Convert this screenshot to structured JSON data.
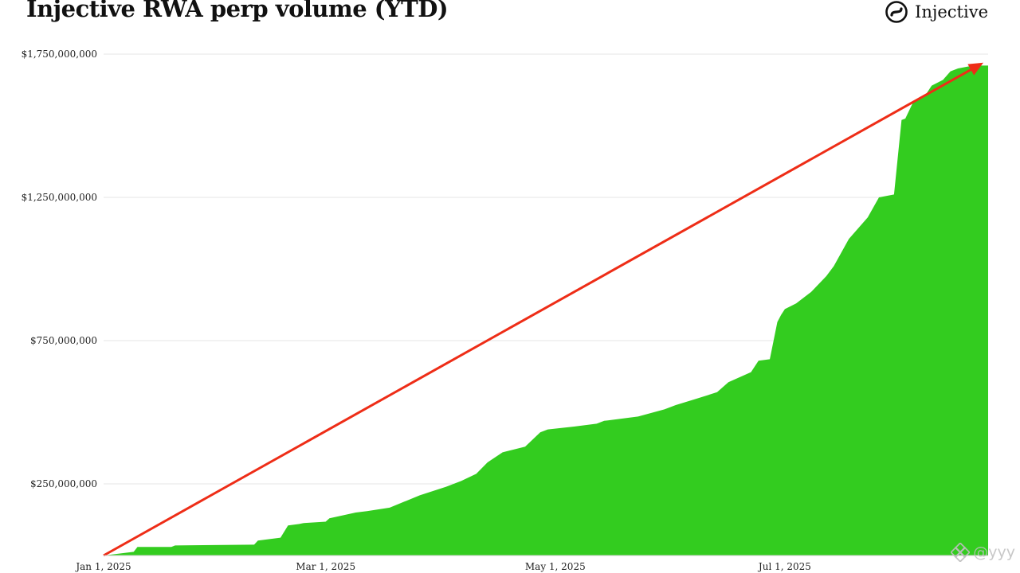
{
  "header": {
    "title": "Injective RWA perp volume (YTD)",
    "brand_name": "Injective",
    "brand_icon": "injective-logo-icon"
  },
  "watermark": {
    "text": "@yyy",
    "icon": "binance-square-icon"
  },
  "colors": {
    "area": "#33cc1f",
    "trend_arrow": "#ee2d17",
    "grid": "#e4e4e4"
  },
  "chart_data": {
    "type": "area",
    "title": "Injective RWA perp volume (YTD)",
    "xlabel": "",
    "ylabel": "",
    "x_type": "date",
    "xlim": [
      "2025-01-01",
      "2025-08-24"
    ],
    "ylim": [
      0,
      1750000000
    ],
    "x_ticks": [
      "2025-01-01",
      "2025-03-01",
      "2025-05-01",
      "2025-07-01"
    ],
    "x_tick_labels": [
      "Jan 1, 2025",
      "Mar 1, 2025",
      "May 1, 2025",
      "Jul 1, 2025"
    ],
    "y_ticks": [
      250000000,
      750000000,
      1250000000,
      1750000000
    ],
    "y_tick_labels": [
      "$250,000,000",
      "$750,000,000",
      "$1,250,000,000",
      "$1,750,000,000"
    ],
    "grid": true,
    "legend": "none",
    "series": [
      {
        "x": [
          "2025-01-01",
          "2025-01-03",
          "2025-01-09",
          "2025-01-10",
          "2025-01-19",
          "2025-01-20",
          "2025-02-10",
          "2025-02-11",
          "2025-02-17",
          "2025-02-19",
          "2025-02-22",
          "2025-02-23",
          "2025-03-01",
          "2025-03-02",
          "2025-03-09",
          "2025-03-12",
          "2025-03-18",
          "2025-03-26",
          "2025-04-02",
          "2025-04-06",
          "2025-04-10",
          "2025-04-13",
          "2025-04-17",
          "2025-04-23",
          "2025-04-27",
          "2025-04-29",
          "2025-05-06",
          "2025-05-12",
          "2025-05-14",
          "2025-05-23",
          "2025-05-30",
          "2025-06-02",
          "2025-06-07",
          "2025-06-13",
          "2025-06-16",
          "2025-06-22",
          "2025-06-24",
          "2025-06-27",
          "2025-06-29",
          "2025-06-30",
          "2025-07-01",
          "2025-07-04",
          "2025-07-08",
          "2025-07-12",
          "2025-07-14",
          "2025-07-18",
          "2025-07-23",
          "2025-07-26",
          "2025-07-30",
          "2025-08-01",
          "2025-08-02",
          "2025-08-04",
          "2025-08-07",
          "2025-08-09",
          "2025-08-12",
          "2025-08-14",
          "2025-08-16",
          "2025-08-20",
          "2025-08-24"
        ],
        "values": [
          0,
          3000000,
          13000000,
          30000000,
          30000000,
          35000000,
          38000000,
          52000000,
          62000000,
          105000000,
          110000000,
          113000000,
          118000000,
          130000000,
          150000000,
          155000000,
          167000000,
          210000000,
          240000000,
          260000000,
          285000000,
          325000000,
          360000000,
          380000000,
          430000000,
          440000000,
          450000000,
          460000000,
          470000000,
          485000000,
          510000000,
          525000000,
          545000000,
          570000000,
          605000000,
          640000000,
          680000000,
          685000000,
          815000000,
          840000000,
          860000000,
          880000000,
          920000000,
          975000000,
          1010000000,
          1105000000,
          1180000000,
          1250000000,
          1260000000,
          1520000000,
          1525000000,
          1580000000,
          1600000000,
          1640000000,
          1660000000,
          1690000000,
          1700000000,
          1710000000,
          1710000000
        ]
      }
    ],
    "trend_arrow": {
      "from": [
        "2025-01-01",
        0
      ],
      "to": [
        "2025-08-24",
        1720000000
      ]
    }
  }
}
